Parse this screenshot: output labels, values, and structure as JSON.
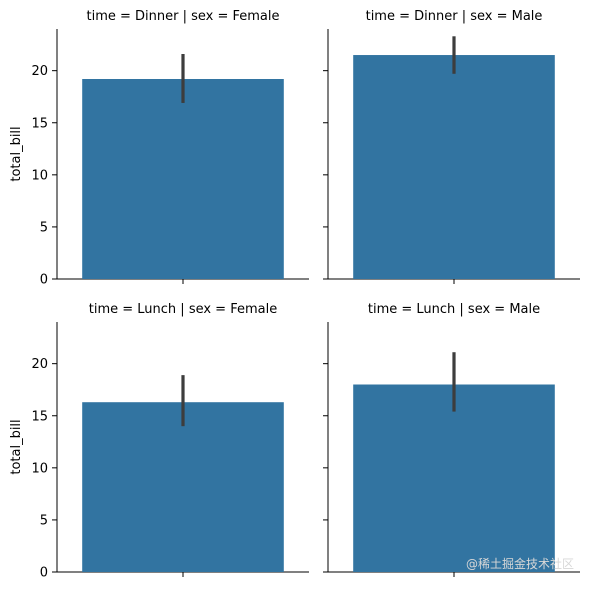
{
  "chart_data": {
    "type": "bar",
    "x_categories": [
      "Dinner",
      "Lunch"
    ],
    "y_range": [
      0,
      24
    ],
    "y_ticks": [
      0,
      5,
      10,
      15,
      20
    ],
    "y_tick_labels": [
      "0",
      "5",
      "10",
      "15",
      "20"
    ],
    "ylabel": "total_bill",
    "color": "#3274a1",
    "errorbar_color": "#3d3d3d",
    "facets": [
      {
        "title": "time = Dinner | sex = Female",
        "value": 19.2,
        "error_low": 16.9,
        "error_high": 21.6
      },
      {
        "title": "time = Dinner | sex = Male",
        "value": 21.5,
        "error_low": 19.7,
        "error_high": 23.3
      },
      {
        "title": "time = Lunch | sex = Female",
        "value": 16.3,
        "error_low": 14.0,
        "error_high": 18.9
      },
      {
        "title": "time = Lunch | sex = Male",
        "value": 18.0,
        "error_low": 15.4,
        "error_high": 21.1
      }
    ]
  },
  "watermark": "@稀土掘金技术社区"
}
